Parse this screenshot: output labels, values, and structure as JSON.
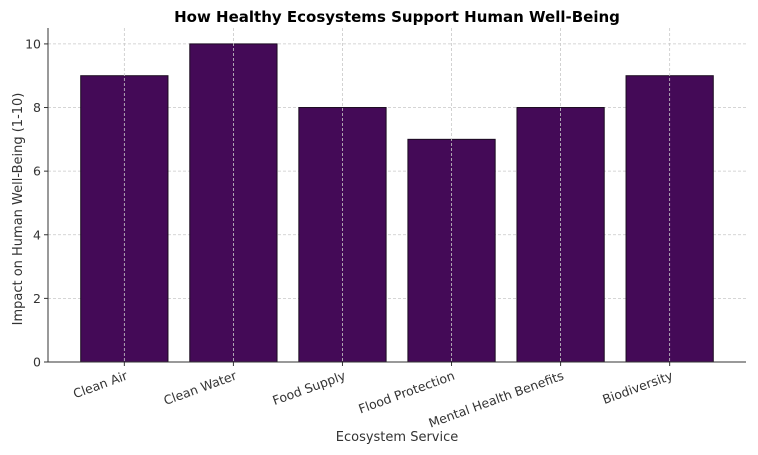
{
  "chart_data": {
    "type": "bar",
    "title": "How Healthy Ecosystems Support Human Well-Being",
    "xlabel": "Ecosystem Service",
    "ylabel": "Impact on Human Well-Being (1-10)",
    "categories": [
      "Clean Air",
      "Clean Water",
      "Food Supply",
      "Flood Protection",
      "Mental Health Benefits",
      "Biodiversity"
    ],
    "values": [
      9,
      10,
      8,
      7,
      8,
      9
    ],
    "ylim": [
      0,
      10.5
    ],
    "yticks": [
      0,
      2,
      4,
      6,
      8,
      10
    ],
    "grid": true,
    "bar_color": "#440a57",
    "x_tick_rotation_deg": -20
  }
}
